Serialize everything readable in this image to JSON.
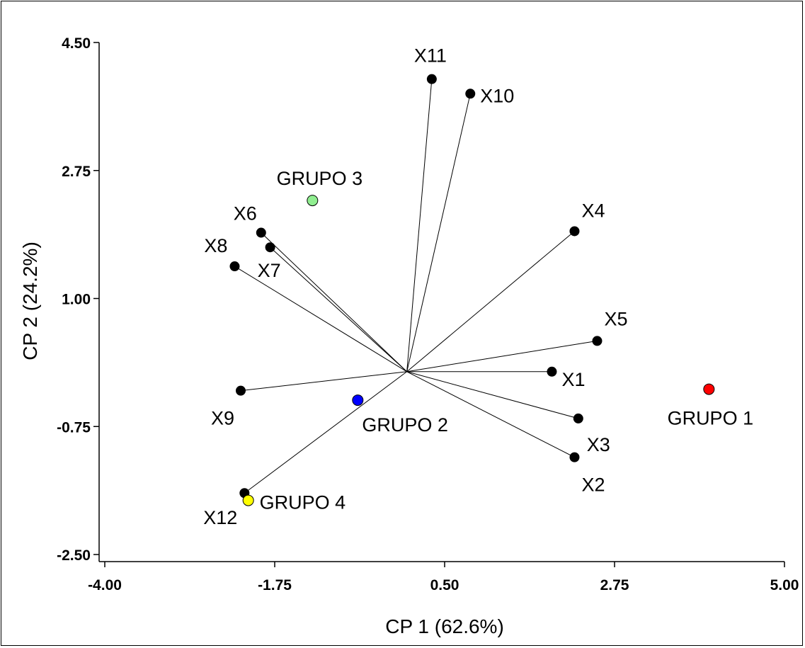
{
  "chart_data": {
    "type": "scatter",
    "xlabel": "CP 1 (62.6%)",
    "ylabel": "CP  2  (24.2%)",
    "xlim": [
      -4.0,
      5.0
    ],
    "ylim": [
      -2.5,
      4.5
    ],
    "xticks": [
      "-4.00",
      "-1.75",
      "0.50",
      "2.75",
      "5.00"
    ],
    "xtick_values": [
      -4.0,
      -1.75,
      0.5,
      2.75,
      5.0
    ],
    "yticks": [
      "4.50",
      "2.75",
      "1.00",
      "-0.75",
      "-2.50"
    ],
    "ytick_values": [
      4.5,
      2.75,
      1.0,
      -0.75,
      -2.5
    ],
    "grid": false,
    "origin": [
      0.0,
      0.0
    ],
    "vectors": [
      {
        "label": "X1",
        "x": 1.92,
        "y": 0.0
      },
      {
        "label": "X2",
        "x": 2.22,
        "y": -1.17
      },
      {
        "label": "X3",
        "x": 2.27,
        "y": -0.64
      },
      {
        "label": "X4",
        "x": 2.22,
        "y": 1.92
      },
      {
        "label": "X5",
        "x": 2.52,
        "y": 0.42
      },
      {
        "label": "X6",
        "x": -1.93,
        "y": 1.9
      },
      {
        "label": "X7",
        "x": -1.81,
        "y": 1.7
      },
      {
        "label": "X8",
        "x": -2.28,
        "y": 1.44
      },
      {
        "label": "X9",
        "x": -2.2,
        "y": -0.26
      },
      {
        "label": "X10",
        "x": 0.84,
        "y": 3.8
      },
      {
        "label": "X11",
        "x": 0.33,
        "y": 4.0
      },
      {
        "label": "X12",
        "x": -2.15,
        "y": -1.66
      }
    ],
    "groups": [
      {
        "label": "GRUPO 1",
        "x": 4.0,
        "y": -0.24,
        "color": "#ff0000"
      },
      {
        "label": "GRUPO 2",
        "x": -0.65,
        "y": -0.39,
        "color": "#0000ff"
      },
      {
        "label": "GRUPO 3",
        "x": -1.25,
        "y": 2.34,
        "color": "#90ee90"
      },
      {
        "label": "GRUPO 4",
        "x": -2.1,
        "y": -1.76,
        "color": "#ffff00"
      }
    ]
  }
}
